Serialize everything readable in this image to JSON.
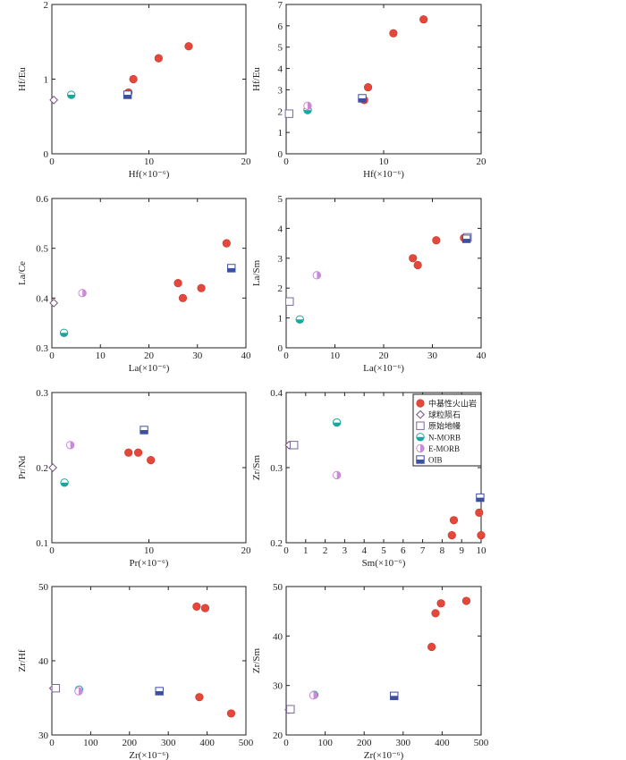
{
  "figure": {
    "colors": {
      "volcanic": "#e5483a",
      "volcanic_edge": "#c0392b",
      "chondrite": "#7a4f7a",
      "primitive_mantle": "#7a6a9a",
      "n_morb": "#1aa5a0",
      "e_morb": "#c98ad6",
      "oib": "#3c4fa0",
      "axis": "#222222"
    },
    "legend": {
      "entries": [
        {
          "key": "volcanic",
          "label": "中基性火山岩"
        },
        {
          "key": "chondrite",
          "label": "球粒陨石"
        },
        {
          "key": "primitive_mantle",
          "label": "原始地幔"
        },
        {
          "key": "n_morb",
          "label": "N-MORB"
        },
        {
          "key": "e_morb",
          "label": "E-MORB"
        },
        {
          "key": "oib",
          "label": "OIB"
        }
      ]
    }
  },
  "chart_data": [
    {
      "id": "p1",
      "type": "scatter",
      "xlabel": "Hf(×10⁻⁶)",
      "ylabel": "Hf/Eu",
      "xlim": [
        0,
        20
      ],
      "ylim": [
        0,
        2
      ],
      "xticks": [
        0,
        10,
        20
      ],
      "yticks": [
        0,
        1,
        2
      ],
      "yticklabels": [
        "0",
        "1",
        "2"
      ],
      "series": [
        {
          "name": "volcanic",
          "points": [
            [
              7.9,
              0.82
            ],
            [
              8.4,
              1.0
            ],
            [
              11.0,
              1.28
            ],
            [
              14.1,
              1.44
            ]
          ]
        },
        {
          "name": "chondrite",
          "points": [
            [
              0.2,
              0.72
            ]
          ]
        },
        {
          "name": "n_morb",
          "points": [
            [
              2.0,
              0.79
            ]
          ]
        },
        {
          "name": "oib",
          "points": [
            [
              7.8,
              0.79
            ]
          ]
        }
      ]
    },
    {
      "id": "p2",
      "type": "scatter",
      "xlabel": "Hf(×10⁻⁶)",
      "ylabel": "Hf/Eu",
      "xlim": [
        0,
        20
      ],
      "ylim": [
        0,
        7
      ],
      "xticks": [
        0,
        10,
        20
      ],
      "yticks": [
        0,
        1,
        2,
        3,
        4,
        5,
        6,
        7
      ],
      "yticklabels": [
        "0",
        "1",
        "2",
        "3",
        "4",
        "5",
        "6",
        "7"
      ],
      "series": [
        {
          "name": "volcanic",
          "points": [
            [
              8.0,
              2.52
            ],
            [
              8.4,
              3.12
            ],
            [
              11.0,
              5.65
            ],
            [
              14.1,
              6.3
            ]
          ]
        },
        {
          "name": "primitive_mantle",
          "points": [
            [
              0.3,
              1.88
            ]
          ]
        },
        {
          "name": "n_morb",
          "points": [
            [
              2.2,
              2.05
            ]
          ]
        },
        {
          "name": "e_morb",
          "points": [
            [
              2.2,
              2.25
            ]
          ]
        },
        {
          "name": "oib",
          "points": [
            [
              7.8,
              2.6
            ]
          ]
        }
      ]
    },
    {
      "id": "p3",
      "type": "scatter",
      "xlabel": "La(×10⁻⁶)",
      "ylabel": "La/Ce",
      "xlim": [
        0,
        40
      ],
      "ylim": [
        0.3,
        0.6
      ],
      "xticks": [
        0,
        10,
        20,
        30,
        40
      ],
      "yticks": [
        0.3,
        0.4,
        0.5,
        0.6
      ],
      "yticklabels": [
        "0.3",
        "0.4",
        "0.5",
        "0.6"
      ],
      "series": [
        {
          "name": "volcanic",
          "points": [
            [
              26.0,
              0.43
            ],
            [
              27.0,
              0.4
            ],
            [
              30.8,
              0.42
            ],
            [
              36.0,
              0.51
            ]
          ]
        },
        {
          "name": "chondrite",
          "points": [
            [
              0.4,
              0.39
            ]
          ]
        },
        {
          "name": "n_morb",
          "points": [
            [
              2.5,
              0.33
            ]
          ]
        },
        {
          "name": "e_morb",
          "points": [
            [
              6.3,
              0.41
            ]
          ]
        },
        {
          "name": "oib",
          "points": [
            [
              37.0,
              0.46
            ]
          ]
        }
      ]
    },
    {
      "id": "p4",
      "type": "scatter",
      "xlabel": "La(×10⁻⁶)",
      "ylabel": "La/Sm",
      "xlim": [
        0,
        40
      ],
      "ylim": [
        0,
        5
      ],
      "xticks": [
        0,
        10,
        20,
        30,
        40
      ],
      "yticks": [
        0,
        1,
        2,
        3,
        4,
        5
      ],
      "yticklabels": [
        "0",
        "1",
        "2",
        "3",
        "4",
        "5"
      ],
      "series": [
        {
          "name": "volcanic",
          "points": [
            [
              26.0,
              3.0
            ],
            [
              27.0,
              2.77
            ],
            [
              30.8,
              3.6
            ],
            [
              36.5,
              3.68
            ]
          ]
        },
        {
          "name": "primitive_mantle",
          "points": [
            [
              0.7,
              1.55
            ],
            [
              37.2,
              3.7
            ]
          ]
        },
        {
          "name": "n_morb",
          "points": [
            [
              2.8,
              0.95
            ]
          ]
        },
        {
          "name": "e_morb",
          "points": [
            [
              6.3,
              2.43
            ]
          ]
        },
        {
          "name": "oib",
          "points": [
            [
              37.0,
              3.65
            ]
          ]
        }
      ]
    },
    {
      "id": "p5",
      "type": "scatter",
      "xlabel": "Pr(×10⁻⁶)",
      "ylabel": "Pr/Nd",
      "xlim": [
        0,
        20
      ],
      "ylim": [
        0.1,
        0.3
      ],
      "xticks": [
        0,
        10,
        20
      ],
      "yticks": [
        0.1,
        0.2,
        0.3
      ],
      "yticklabels": [
        "0.1",
        "0.2",
        "0.3"
      ],
      "series": [
        {
          "name": "volcanic",
          "points": [
            [
              7.9,
              0.22
            ],
            [
              8.9,
              0.22
            ],
            [
              10.2,
              0.21
            ]
          ]
        },
        {
          "name": "chondrite",
          "points": [
            [
              0.1,
              0.2
            ]
          ]
        },
        {
          "name": "n_morb",
          "points": [
            [
              1.3,
              0.18
            ]
          ]
        },
        {
          "name": "e_morb",
          "points": [
            [
              1.9,
              0.23
            ]
          ]
        },
        {
          "name": "oib",
          "points": [
            [
              9.5,
              0.25
            ]
          ]
        }
      ]
    },
    {
      "id": "p6",
      "type": "scatter",
      "xlabel": "Sm(×10⁻⁶)",
      "ylabel": "Zr/Sm",
      "xlim": [
        0,
        10
      ],
      "ylim": [
        0.2,
        0.4
      ],
      "xticks": [
        0,
        1,
        2,
        3,
        4,
        5,
        6,
        7,
        8,
        9,
        10
      ],
      "yticks": [
        0.2,
        0.3,
        0.4
      ],
      "yticklabels": [
        "0.2",
        "0.3",
        "0.4"
      ],
      "legend": true,
      "series": [
        {
          "name": "volcanic",
          "points": [
            [
              8.6,
              0.23
            ],
            [
              8.5,
              0.21
            ],
            [
              9.9,
              0.24
            ],
            [
              10.0,
              0.21
            ]
          ]
        },
        {
          "name": "chondrite",
          "points": [
            [
              0.15,
              0.33
            ]
          ]
        },
        {
          "name": "primitive_mantle",
          "points": [
            [
              0.4,
              0.33
            ]
          ]
        },
        {
          "name": "n_morb",
          "points": [
            [
              2.6,
              0.36
            ]
          ]
        },
        {
          "name": "e_morb",
          "points": [
            [
              2.6,
              0.29
            ]
          ]
        },
        {
          "name": "oib",
          "points": [
            [
              9.95,
              0.26
            ]
          ]
        }
      ]
    },
    {
      "id": "p7",
      "type": "scatter",
      "xlabel": "Zr(×10⁻⁶)",
      "ylabel": "Zr/Hf",
      "xlim": [
        0,
        500
      ],
      "ylim": [
        30,
        50
      ],
      "xticks": [
        0,
        100,
        200,
        300,
        400,
        500
      ],
      "yticks": [
        30,
        40,
        50
      ],
      "yticklabels": [
        "30",
        "40",
        "50"
      ],
      "series": [
        {
          "name": "volcanic",
          "points": [
            [
              373,
              47.3
            ],
            [
              395,
              47.1
            ],
            [
              380,
              35.1
            ],
            [
              462,
              32.9
            ]
          ]
        },
        {
          "name": "chondrite",
          "points": [
            [
              4,
              36.3
            ]
          ]
        },
        {
          "name": "primitive_mantle",
          "points": [
            [
              10,
              36.3
            ]
          ]
        },
        {
          "name": "n_morb",
          "points": [
            [
              70,
              36.1
            ]
          ]
        },
        {
          "name": "e_morb",
          "points": [
            [
              69,
              35.9
            ]
          ]
        },
        {
          "name": "oib",
          "points": [
            [
              277,
              35.9
            ]
          ]
        }
      ]
    },
    {
      "id": "p8",
      "type": "scatter",
      "xlabel": "Zr(×10⁻⁶)",
      "ylabel": "Zr/Sm",
      "xlim": [
        0,
        500
      ],
      "ylim": [
        20,
        50
      ],
      "xticks": [
        0,
        100,
        200,
        300,
        400,
        500
      ],
      "yticks": [
        20,
        30,
        40,
        50
      ],
      "yticklabels": [
        "20",
        "30",
        "40",
        "50"
      ],
      "series": [
        {
          "name": "volcanic",
          "points": [
            [
              373,
              37.8
            ],
            [
              383,
              44.6
            ],
            [
              397,
              46.6
            ],
            [
              462,
              47.1
            ]
          ]
        },
        {
          "name": "chondrite",
          "points": [
            [
              7,
              25.1
            ]
          ]
        },
        {
          "name": "primitive_mantle",
          "points": [
            [
              11,
              25.2
            ]
          ]
        },
        {
          "name": "n_morb",
          "points": [
            [
              72,
              28.1
            ]
          ]
        },
        {
          "name": "e_morb",
          "points": [
            [
              70,
              28.0
            ]
          ]
        },
        {
          "name": "oib",
          "points": [
            [
              277,
              27.9
            ]
          ]
        }
      ]
    }
  ]
}
